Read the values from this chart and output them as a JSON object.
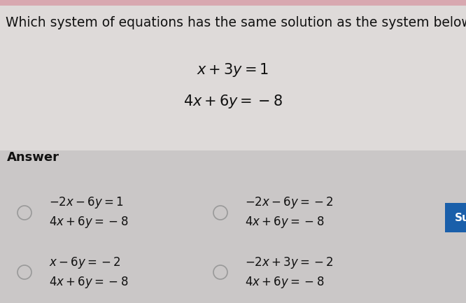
{
  "title": "Which system of equations has the same solution as the system below?",
  "title_fontsize": 13.5,
  "system_eq1": "$x+3y=1$",
  "system_eq2": "$4x+6y=-8$",
  "answer_label": "Answer",
  "answer_label_fontsize": 13,
  "options": [
    {
      "eq1": "$-2x-6y=1$",
      "eq2": "$4x+6y=-8$",
      "col": 0,
      "row": 0
    },
    {
      "eq1": "$-2x-6y=-2$",
      "eq2": "$4x+6y=-8$",
      "col": 1,
      "row": 0
    },
    {
      "eq1": "$x-6y=-2$",
      "eq2": "$4x+6y=-8$",
      "col": 0,
      "row": 1
    },
    {
      "eq1": "$-2x+3y=-2$",
      "eq2": "$4x+6y=-8$",
      "col": 1,
      "row": 1
    }
  ],
  "bg_color": "#d4d1d1",
  "top_bg_color": "#dedad9",
  "answer_bg_color": "#cac7c7",
  "submit_button_color": "#1a5faa",
  "submit_button_text": "Sub",
  "submit_button_text_color": "#ffffff",
  "circle_color": "#999999",
  "text_color": "#111111",
  "eq_fontsize": 15,
  "option_fontsize": 12
}
